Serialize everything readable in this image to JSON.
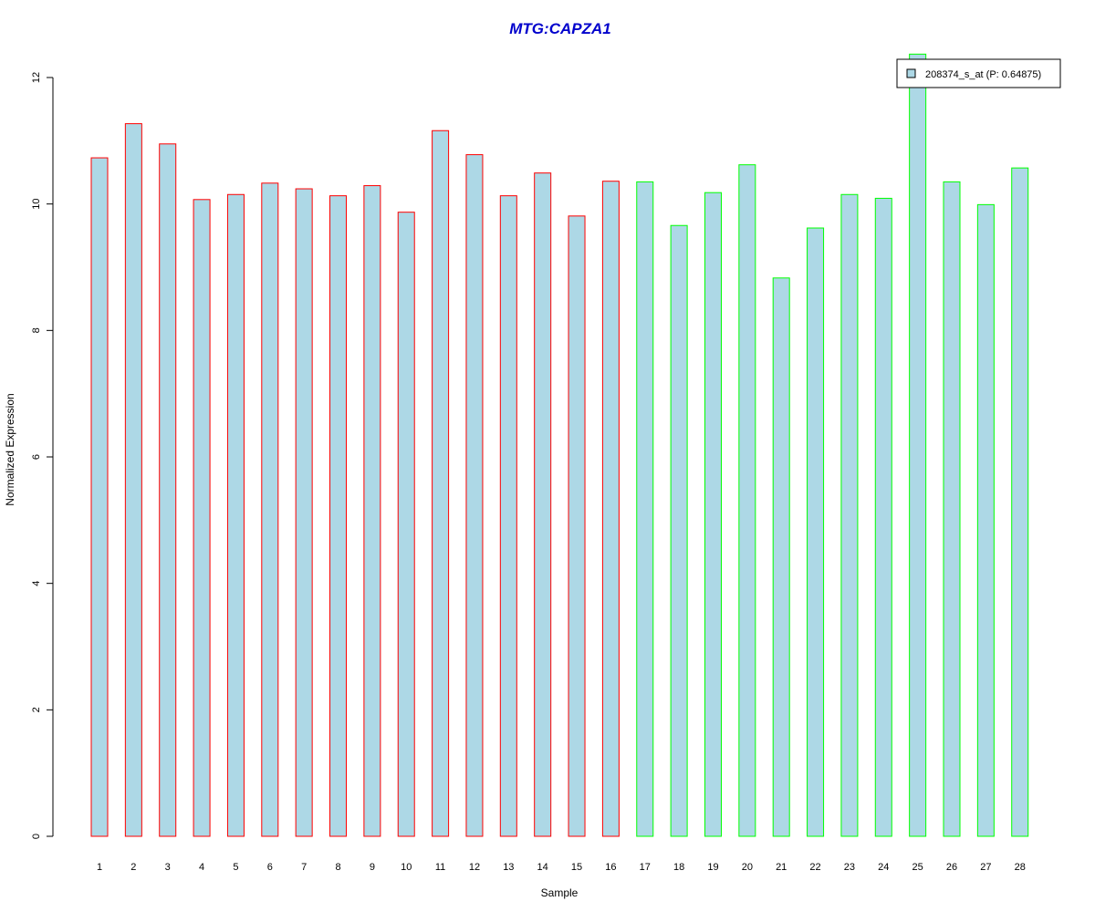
{
  "chart_data": {
    "type": "bar",
    "title": "MTG:CAPZA1",
    "xlabel": "Sample",
    "ylabel": "Normalized Expression",
    "ylim": [
      0,
      12
    ],
    "yticks": [
      0,
      2,
      4,
      6,
      8,
      10,
      12
    ],
    "categories": [
      "1",
      "2",
      "3",
      "4",
      "5",
      "6",
      "7",
      "8",
      "9",
      "10",
      "11",
      "12",
      "13",
      "14",
      "15",
      "16",
      "17",
      "18",
      "19",
      "20",
      "21",
      "22",
      "23",
      "24",
      "25",
      "26",
      "27",
      "28"
    ],
    "series": [
      {
        "name": "208374_s_at (P: 0.64875)",
        "values": [
          10.73,
          11.27,
          10.95,
          10.07,
          10.15,
          10.33,
          10.24,
          10.13,
          10.29,
          9.87,
          11.16,
          10.78,
          10.13,
          10.49,
          9.81,
          10.36,
          10.35,
          9.66,
          10.18,
          10.62,
          8.83,
          9.62,
          10.15,
          10.09,
          12.37,
          10.35,
          9.99,
          10.57
        ]
      }
    ],
    "bar_fill": "#ADD8E6",
    "group_border_colors": [
      "#FF0000",
      "#FF0000",
      "#FF0000",
      "#FF0000",
      "#FF0000",
      "#FF0000",
      "#FF0000",
      "#FF0000",
      "#FF0000",
      "#FF0000",
      "#FF0000",
      "#FF0000",
      "#FF0000",
      "#FF0000",
      "#FF0000",
      "#FF0000",
      "#00FF00",
      "#00FF00",
      "#00FF00",
      "#00FF00",
      "#00FF00",
      "#00FF00",
      "#00FF00",
      "#00FF00",
      "#00FF00",
      "#00FF00",
      "#00FF00",
      "#00FF00"
    ],
    "title_color": "#0000CC",
    "grid": false,
    "legend_position": "top-right"
  }
}
